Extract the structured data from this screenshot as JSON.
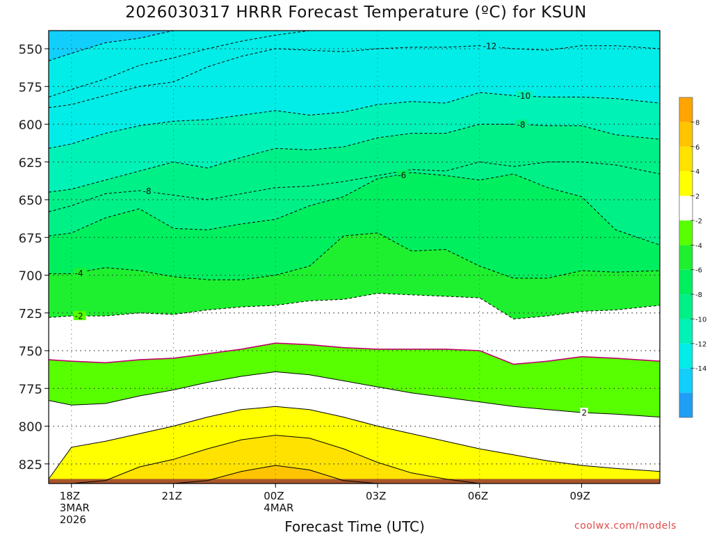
{
  "chart_data": {
    "type": "filled-contour",
    "title": "2026030317 HRRR Forecast Temperature (ºC) for KSUN",
    "xlabel": "Forecast Time (UTC)",
    "ylabel": "",
    "y_scale": "pressure (hPa), inverted",
    "ylim": [
      838,
      538
    ],
    "xlim": [
      -0.67,
      17.3
    ],
    "y_ticks": [
      550,
      575,
      600,
      625,
      650,
      675,
      700,
      725,
      750,
      775,
      800,
      825
    ],
    "x_ticks": [
      {
        "x": 0,
        "label": [
          "18Z",
          "3MAR",
          "2026"
        ]
      },
      {
        "x": 3,
        "label": [
          "21Z"
        ]
      },
      {
        "x": 6,
        "label": [
          "00Z",
          "4MAR"
        ]
      },
      {
        "x": 9,
        "label": [
          "03Z"
        ]
      },
      {
        "x": 12,
        "label": [
          "06Z"
        ]
      },
      {
        "x": 15,
        "label": [
          "09Z"
        ]
      }
    ],
    "grid": true,
    "x": [
      -0.67,
      0,
      1,
      2,
      3,
      4,
      5,
      6,
      7,
      8,
      9,
      10,
      11,
      12,
      13,
      14,
      15,
      16,
      17.3
    ],
    "isotherms": [
      {
        "t": -14,
        "p": [
          582,
          577,
          570,
          561,
          556,
          550,
          545,
          541,
          538,
          538,
          538,
          538,
          538,
          538,
          538,
          538,
          538,
          538,
          538
        ],
        "style": "dashed",
        "label": "",
        "label_x": null
      },
      {
        "t": -12,
        "p": [
          558,
          553,
          546,
          543,
          538,
          538,
          538,
          538,
          538,
          538,
          538,
          538,
          538,
          538,
          538,
          538,
          538,
          538,
          538
        ],
        "style": "dashed",
        "label": "",
        "label_x": null
      },
      {
        "t": -12,
        "p": [
          589,
          587,
          581,
          575,
          572,
          562,
          555,
          550,
          551,
          552,
          550,
          549,
          549,
          548,
          550,
          551,
          548,
          548,
          550
        ],
        "style": "dashed",
        "label": "-12",
        "label_x": 12.1
      },
      {
        "t": -10,
        "p": [
          616,
          613,
          606,
          601,
          598,
          597,
          594,
          591,
          594,
          592,
          587,
          585,
          586,
          579,
          581,
          582,
          582,
          583,
          586
        ],
        "style": "dashed",
        "label": "-10",
        "label_x": 13.1
      },
      {
        "t": -8,
        "p": [
          645,
          643,
          637,
          631,
          625,
          629,
          622,
          616,
          617,
          615,
          609,
          606,
          606,
          600,
          600,
          601,
          601,
          607,
          610
        ],
        "style": "dashed",
        "label": "-8",
        "label_x": 13.1
      },
      {
        "t": -8,
        "p": [
          658,
          654,
          646,
          644,
          647,
          650,
          646,
          642,
          641,
          638,
          634,
          630,
          631,
          625,
          628,
          625,
          625,
          627,
          633
        ],
        "style": "dashed",
        "label": "-8",
        "label_x": 2.1
      },
      {
        "t": -6,
        "p": [
          674,
          672,
          662,
          656,
          669,
          670,
          666,
          663,
          654,
          648,
          636,
          632,
          634,
          637,
          633,
          642,
          648,
          670,
          680
        ],
        "style": "dashed",
        "label": "-6",
        "label_x": 9.6
      },
      {
        "t": -4,
        "p": [
          699,
          699,
          695,
          697,
          701,
          703,
          703,
          700,
          694,
          674,
          672,
          684,
          683,
          694,
          702,
          702,
          697,
          698,
          697
        ],
        "style": "dashed",
        "label": "-4",
        "label_x": 0.1
      },
      {
        "t": -2,
        "p": [
          728,
          727,
          727,
          725,
          726,
          723,
          721,
          720,
          717,
          716,
          712,
          713,
          714,
          715,
          729,
          727,
          724,
          723,
          720
        ],
        "style": "dashed",
        "label": "-2",
        "label_x": 0.1
      },
      {
        "t": 0,
        "p": [
          756,
          757,
          758,
          756,
          755,
          752,
          749,
          745,
          746,
          748,
          749,
          749,
          749,
          750,
          759,
          757,
          754,
          755,
          757
        ],
        "style": "solid-magenta",
        "label": "",
        "label_x": null
      },
      {
        "t": 2,
        "p": [
          783,
          786,
          785,
          780,
          776,
          771,
          767,
          764,
          766,
          770,
          774,
          778,
          781,
          784,
          787,
          789,
          791,
          792,
          794
        ],
        "style": "solid",
        "label": "2",
        "label_x": 15.0
      },
      {
        "t": 4,
        "p": [
          835,
          814,
          810,
          805,
          800,
          794,
          789,
          787,
          789,
          794,
          800,
          805,
          810,
          815,
          819,
          823,
          826,
          828,
          830
        ],
        "style": "solid",
        "label": "",
        "label_x": null
      },
      {
        "t": 6,
        "p": [
          838,
          838,
          836,
          827,
          822,
          815,
          809,
          806,
          808,
          815,
          824,
          831,
          835,
          838,
          838,
          838,
          838,
          838,
          838
        ],
        "style": "solid",
        "label": "",
        "label_x": null
      },
      {
        "t": 8,
        "p": [
          838,
          838,
          838,
          838,
          838,
          836,
          830,
          826,
          829,
          836,
          838,
          838,
          838,
          838,
          838,
          838,
          838,
          838,
          838
        ],
        "style": "solid",
        "label": "",
        "label_x": null
      }
    ],
    "ground_p": 835,
    "colorbar": {
      "levels": [
        -16,
        -14,
        -12,
        -10,
        -8,
        -6,
        -4,
        -2,
        2,
        4,
        6,
        8,
        10
      ],
      "labels": [
        "-14",
        "-12",
        "-10",
        "-8",
        "-6",
        "-4",
        "-2",
        "2",
        "4",
        "6",
        "8"
      ],
      "colors": [
        "#1e9ef5",
        "#12cefa",
        "#02ede7",
        "#00f2b6",
        "#00f088",
        "#00ef5e",
        "#1ef02f",
        "#58ff00",
        "#ffffff",
        "#ffff00",
        "#ffe200",
        "#ffc400",
        "#ffa400"
      ]
    }
  },
  "credit": "coolwx.com/models"
}
